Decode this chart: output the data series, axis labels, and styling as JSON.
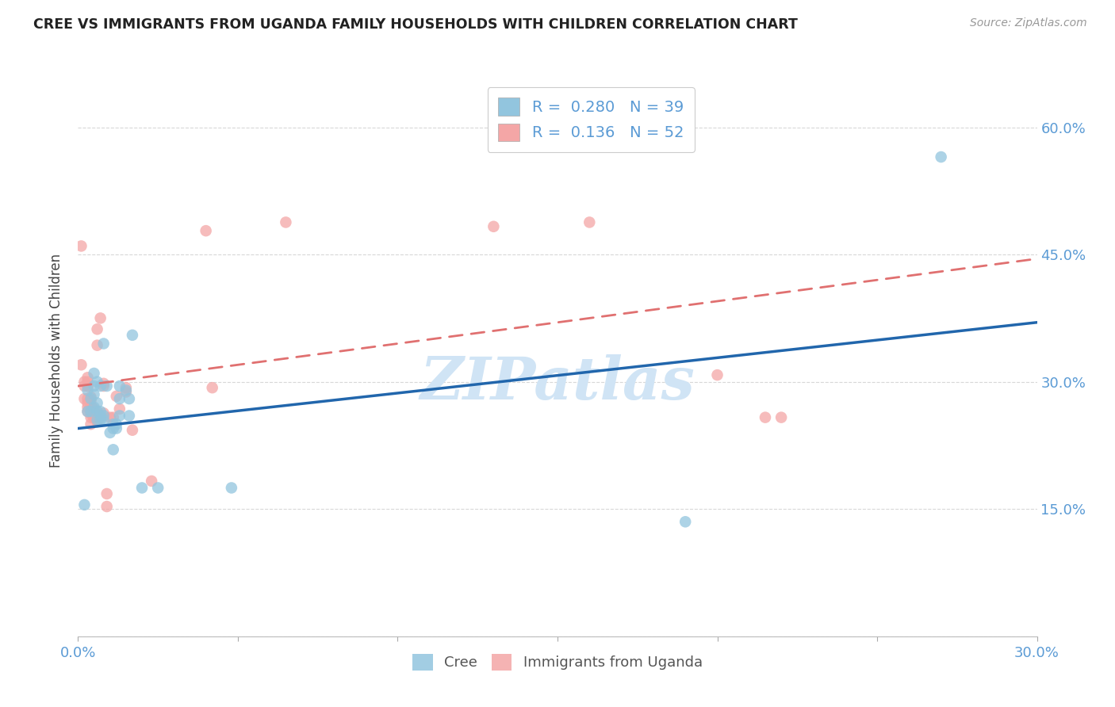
{
  "title": "CREE VS IMMIGRANTS FROM UGANDA FAMILY HOUSEHOLDS WITH CHILDREN CORRELATION CHART",
  "source": "Source: ZipAtlas.com",
  "ylabel": "Family Households with Children",
  "xlim": [
    0.0,
    0.3
  ],
  "ylim": [
    0.0,
    0.65
  ],
  "x_tick_pos": [
    0.0,
    0.05,
    0.1,
    0.15,
    0.2,
    0.25,
    0.3
  ],
  "x_tick_labels": [
    "0.0%",
    "",
    "",
    "",
    "",
    "",
    "30.0%"
  ],
  "y_tick_pos": [
    0.0,
    0.15,
    0.3,
    0.45,
    0.6
  ],
  "y_tick_labels": [
    "",
    "15.0%",
    "30.0%",
    "45.0%",
    "60.0%"
  ],
  "legend_r_blue": "0.280",
  "legend_n_blue": "39",
  "legend_r_pink": "0.136",
  "legend_n_pink": "52",
  "blue_color": "#92c5de",
  "pink_color": "#f4a6a6",
  "blue_line_color": "#2166ac",
  "pink_line_color": "#e07070",
  "watermark": "ZIPatlas",
  "watermark_color": "#d0e4f5",
  "cree_points_x": [
    0.002,
    0.003,
    0.003,
    0.004,
    0.004,
    0.005,
    0.005,
    0.005,
    0.005,
    0.006,
    0.006,
    0.006,
    0.006,
    0.007,
    0.007,
    0.007,
    0.007,
    0.008,
    0.008,
    0.008,
    0.009,
    0.01,
    0.011,
    0.011,
    0.011,
    0.012,
    0.012,
    0.013,
    0.013,
    0.013,
    0.015,
    0.016,
    0.016,
    0.017,
    0.02,
    0.025,
    0.048,
    0.19,
    0.27
  ],
  "cree_points_y": [
    0.155,
    0.265,
    0.29,
    0.265,
    0.28,
    0.27,
    0.285,
    0.295,
    0.31,
    0.255,
    0.265,
    0.275,
    0.3,
    0.255,
    0.26,
    0.265,
    0.295,
    0.255,
    0.26,
    0.345,
    0.295,
    0.24,
    0.22,
    0.245,
    0.25,
    0.245,
    0.25,
    0.26,
    0.28,
    0.295,
    0.29,
    0.28,
    0.26,
    0.355,
    0.175,
    0.175,
    0.175,
    0.135,
    0.565
  ],
  "uganda_points_x": [
    0.001,
    0.001,
    0.002,
    0.002,
    0.002,
    0.003,
    0.003,
    0.003,
    0.003,
    0.003,
    0.003,
    0.003,
    0.003,
    0.004,
    0.004,
    0.004,
    0.004,
    0.004,
    0.004,
    0.004,
    0.005,
    0.005,
    0.005,
    0.005,
    0.005,
    0.006,
    0.006,
    0.006,
    0.006,
    0.007,
    0.007,
    0.008,
    0.008,
    0.008,
    0.009,
    0.009,
    0.01,
    0.011,
    0.012,
    0.013,
    0.015,
    0.015,
    0.017,
    0.023,
    0.04,
    0.042,
    0.065,
    0.13,
    0.16,
    0.2,
    0.215,
    0.22
  ],
  "uganda_points_y": [
    0.46,
    0.32,
    0.28,
    0.295,
    0.3,
    0.265,
    0.27,
    0.275,
    0.28,
    0.295,
    0.295,
    0.3,
    0.305,
    0.25,
    0.258,
    0.262,
    0.268,
    0.272,
    0.278,
    0.282,
    0.258,
    0.26,
    0.263,
    0.265,
    0.268,
    0.253,
    0.258,
    0.343,
    0.362,
    0.258,
    0.375,
    0.263,
    0.295,
    0.298,
    0.153,
    0.168,
    0.258,
    0.258,
    0.283,
    0.268,
    0.288,
    0.293,
    0.243,
    0.183,
    0.478,
    0.293,
    0.488,
    0.483,
    0.488,
    0.308,
    0.258,
    0.258
  ],
  "blue_line_x0": 0.0,
  "blue_line_x1": 0.3,
  "blue_line_y0": 0.245,
  "blue_line_y1": 0.37,
  "pink_line_x0": 0.0,
  "pink_line_x1": 0.3,
  "pink_line_y0": 0.295,
  "pink_line_y1": 0.445
}
